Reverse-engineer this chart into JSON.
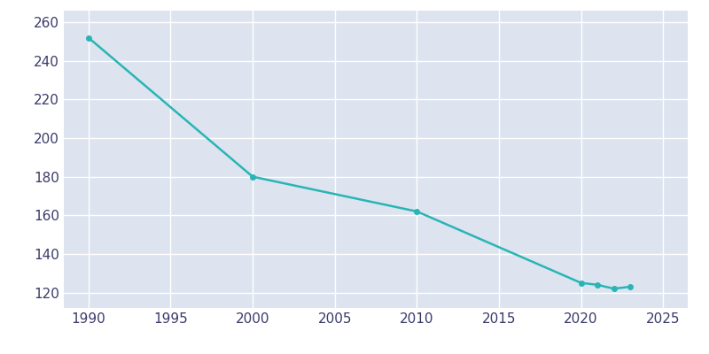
{
  "years": [
    1990,
    2000,
    2010,
    2020,
    2021,
    2022,
    2023
  ],
  "population": [
    252,
    180,
    162,
    125,
    124,
    122,
    123
  ],
  "line_color": "#29b5b5",
  "marker_color": "#29b5b5",
  "fig_bg_color": "#ffffff",
  "plot_bg_color": "#dde4ef",
  "grid_color": "#ffffff",
  "tick_color": "#3a3a6a",
  "xlim": [
    1988.5,
    2026.5
  ],
  "ylim": [
    112,
    266
  ],
  "yticks": [
    120,
    140,
    160,
    180,
    200,
    220,
    240,
    260
  ],
  "xticks": [
    1990,
    1995,
    2000,
    2005,
    2010,
    2015,
    2020,
    2025
  ]
}
